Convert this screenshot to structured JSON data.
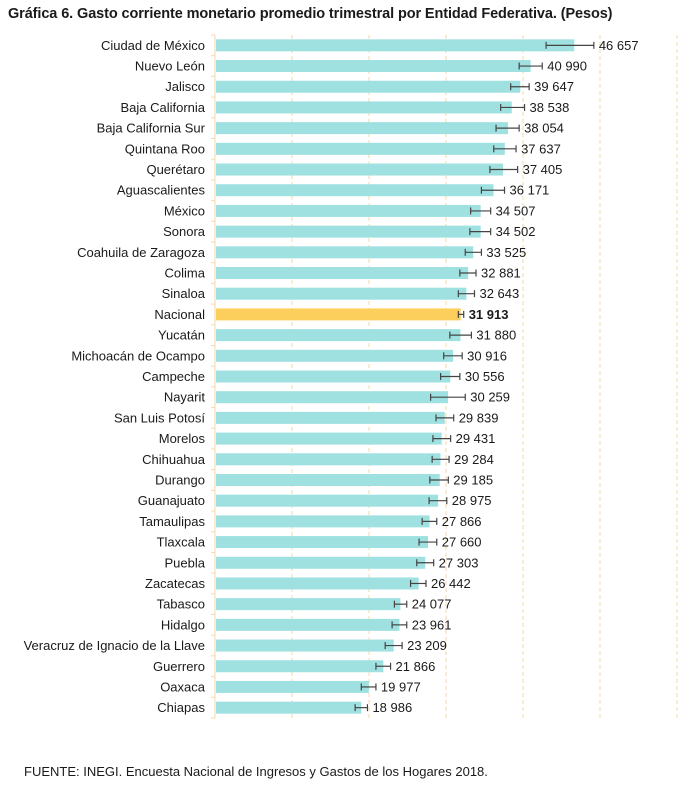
{
  "chart_data": {
    "type": "bar",
    "orientation": "horizontal",
    "title": "Gráfica 6. Gasto corriente monetario promedio trimestral por Entidad Federativa. (Pesos)",
    "xlabel": "",
    "ylabel": "",
    "xlim": [
      0,
      60000
    ],
    "grid": true,
    "gridlines_every": 10000,
    "highlight_category": "Nacional",
    "colors": {
      "bar": "#9fe0e0",
      "highlight": "#fccf5c",
      "gridline": "#f5d9a8",
      "errorbar": "#444444"
    },
    "error_margin_approx": 1400,
    "categories": [
      "Ciudad de México",
      "Nuevo León",
      "Jalisco",
      "Baja California",
      "Baja California Sur",
      "Quintana Roo",
      "Querétaro",
      "Aguascalientes",
      "México",
      "Sonora",
      "Coahuila de Zaragoza",
      "Colima",
      "Sinaloa",
      "Nacional",
      "Yucatán",
      "Michoacán de Ocampo",
      "Campeche",
      "Nayarit",
      "San Luis Potosí",
      "Morelos",
      "Chihuahua",
      "Durango",
      "Guanajuato",
      "Tamaulipas",
      "Tlaxcala",
      "Puebla",
      "Zacatecas",
      "Tabasco",
      "Hidalgo",
      "Veracruz de Ignacio de la Llave",
      "Guerrero",
      "Oaxaca",
      "Chiapas"
    ],
    "values": [
      46657,
      40990,
      39647,
      38538,
      38054,
      37637,
      37405,
      36171,
      34507,
      34502,
      33525,
      32881,
      32643,
      31913,
      31880,
      30916,
      30556,
      30259,
      29839,
      29431,
      29284,
      29185,
      28975,
      27866,
      27660,
      27303,
      26442,
      24077,
      23961,
      23209,
      21866,
      19977,
      18986
    ],
    "value_labels": [
      "46 657",
      "40 990",
      "39 647",
      "38 538",
      "38 054",
      "37 637",
      "37 405",
      "36 171",
      "34 507",
      "34 502",
      "33 525",
      "32 881",
      "32 643",
      "31 913",
      "31 880",
      "30 916",
      "30 556",
      "30 259",
      "29 839",
      "29 431",
      "29 284",
      "29 185",
      "28 975",
      "27 866",
      "27 660",
      "27 303",
      "26 442",
      "24 077",
      "23 961",
      "23 209",
      "21 866",
      "19 977",
      "18 986"
    ],
    "error_low": [
      43000,
      39500,
      38400,
      37100,
      36500,
      36200,
      35700,
      34600,
      33200,
      33100,
      32500,
      31800,
      31600,
      31600,
      30500,
      29700,
      29300,
      28000,
      28700,
      28300,
      28200,
      27900,
      27800,
      26900,
      26500,
      26200,
      25400,
      23300,
      23000,
      22100,
      20900,
      19000,
      18200
    ],
    "error_high": [
      49200,
      42500,
      40800,
      40200,
      39500,
      39100,
      39300,
      37600,
      35800,
      35800,
      34600,
      33900,
      33700,
      32300,
      33300,
      32100,
      31800,
      32500,
      31000,
      30600,
      30400,
      30300,
      30100,
      28800,
      28800,
      28400,
      27400,
      24900,
      24900,
      24300,
      22800,
      20900,
      19800
    ]
  },
  "source_note": "FUENTE: INEGI. Encuesta Nacional de Ingresos y Gastos de los Hogares 2018."
}
